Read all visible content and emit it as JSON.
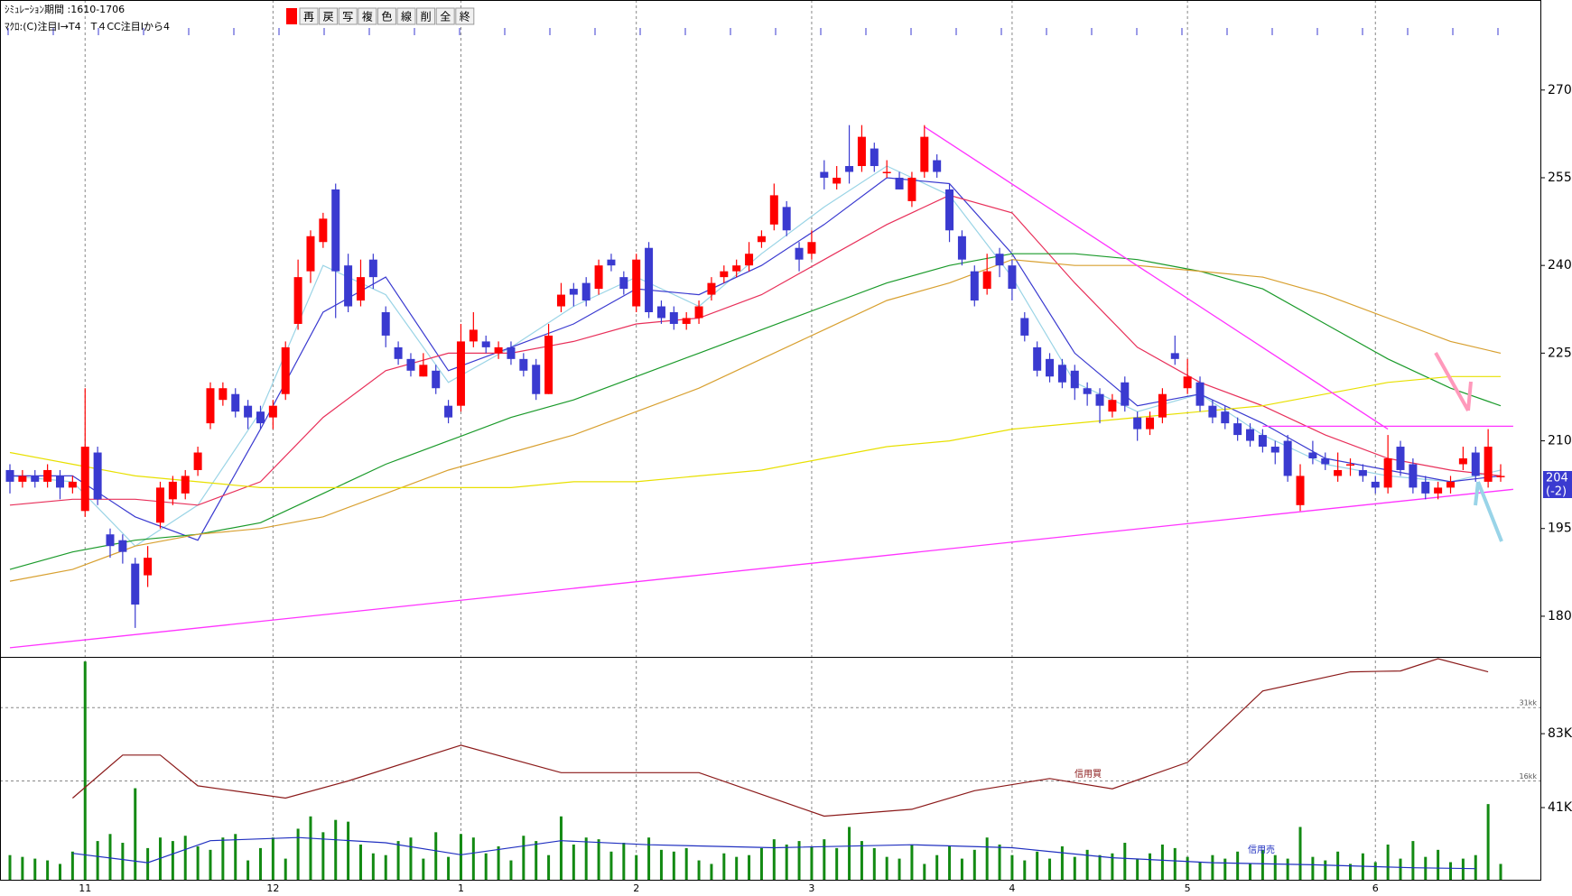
{
  "header": {
    "simulation": "ｼﾐｭﾚｰｼｮﾝ期間 :1610-1706",
    "macro": "ﾏｸﾛ:(C)注目I→T4　T４CC注目Iから4"
  },
  "toolbar": {
    "buttons": [
      "再",
      "戻",
      "写",
      "複",
      "色",
      "線",
      "削",
      "全",
      "終"
    ]
  },
  "chart_data": {
    "type": "candlestick",
    "up_color": "#ff0000",
    "down_color": "#3a3ad0",
    "ylim": [
      173.2,
      285.4
    ],
    "yticks": [
      180,
      195,
      210,
      225,
      240,
      255,
      270
    ],
    "last_price": 204,
    "change": {
      "value": -2,
      "label": "(-2)"
    },
    "xticks": [
      {
        "value": 6,
        "label": "11"
      },
      {
        "value": 21,
        "label": "12"
      },
      {
        "value": 36,
        "label": "1"
      },
      {
        "value": 50,
        "label": "2"
      },
      {
        "value": 64,
        "label": "3"
      },
      {
        "value": 80,
        "label": "4"
      },
      {
        "value": 94,
        "label": "5"
      },
      {
        "value": 109,
        "label": "6"
      }
    ],
    "candles": [
      [
        205,
        206,
        201,
        203
      ],
      [
        203,
        205,
        202,
        204
      ],
      [
        204,
        205,
        202,
        203
      ],
      [
        203,
        206,
        202,
        205
      ],
      [
        204,
        205,
        200,
        202
      ],
      [
        202,
        204,
        201,
        203
      ],
      [
        198,
        219,
        197,
        209
      ],
      [
        208,
        209,
        199,
        200
      ],
      [
        194,
        195,
        190,
        192
      ],
      [
        193,
        194,
        189,
        191
      ],
      [
        189,
        190,
        178,
        182
      ],
      [
        187,
        192,
        185,
        190
      ],
      [
        196,
        203,
        195,
        202
      ],
      [
        200,
        204,
        199,
        203
      ],
      [
        201,
        205,
        200,
        204
      ],
      [
        205,
        209,
        204,
        208
      ],
      [
        213,
        220,
        212,
        219
      ],
      [
        217,
        220,
        216,
        219
      ],
      [
        218,
        219,
        214,
        215
      ],
      [
        216,
        217,
        212,
        214
      ],
      [
        215,
        216,
        212,
        213
      ],
      [
        214,
        217,
        212,
        216
      ],
      [
        218,
        227,
        217,
        226
      ],
      [
        230,
        241,
        229,
        238
      ],
      [
        239,
        246,
        237,
        245
      ],
      [
        244,
        249,
        243,
        248
      ],
      [
        253,
        254,
        231,
        239
      ],
      [
        240,
        242,
        232,
        233
      ],
      [
        234,
        241,
        233,
        238
      ],
      [
        241,
        242,
        236,
        238
      ],
      [
        232,
        233,
        226,
        228
      ],
      [
        226,
        227,
        223,
        224
      ],
      [
        224,
        225,
        221,
        222
      ],
      [
        221,
        225,
        221,
        223
      ],
      [
        222,
        223,
        218,
        219
      ],
      [
        216,
        217,
        213,
        214
      ],
      [
        216,
        230,
        215,
        227
      ],
      [
        227,
        232,
        226,
        229
      ],
      [
        227,
        228,
        225,
        226
      ],
      [
        225,
        227,
        224,
        226
      ],
      [
        226,
        227,
        223,
        224
      ],
      [
        224,
        225,
        221,
        222
      ],
      [
        223,
        224,
        217,
        218
      ],
      [
        218,
        230,
        218,
        228
      ],
      [
        233,
        237,
        232,
        235
      ],
      [
        236,
        237,
        233,
        235
      ],
      [
        237,
        238,
        233,
        234
      ],
      [
        236,
        241,
        235,
        240
      ],
      [
        241,
        242,
        239,
        240
      ],
      [
        238,
        239,
        235,
        236
      ],
      [
        233,
        242,
        232,
        241
      ],
      [
        243,
        244,
        231,
        232
      ],
      [
        233,
        234,
        230,
        231
      ],
      [
        232,
        233,
        229,
        230
      ],
      [
        230,
        232,
        229,
        231
      ],
      [
        231,
        234,
        230,
        233
      ],
      [
        235,
        238,
        234,
        237
      ],
      [
        238,
        240,
        237,
        239
      ],
      [
        239,
        241,
        238,
        240
      ],
      [
        240,
        244,
        239,
        242
      ],
      [
        244,
        246,
        243,
        245
      ],
      [
        247,
        254,
        246,
        252
      ],
      [
        250,
        251,
        245,
        246
      ],
      [
        243,
        244,
        239,
        241
      ],
      [
        242,
        246,
        241,
        244
      ],
      [
        256,
        258,
        253,
        255
      ],
      [
        254,
        257,
        253,
        255
      ],
      [
        257,
        264,
        254,
        256
      ],
      [
        257,
        264,
        256,
        262
      ],
      [
        260,
        261,
        256,
        257
      ],
      [
        256,
        258,
        255,
        256
      ],
      [
        255,
        256,
        253,
        253
      ],
      [
        251,
        256,
        250,
        255
      ],
      [
        256,
        264,
        255,
        262
      ],
      [
        258,
        259,
        255,
        256
      ],
      [
        253,
        254,
        244,
        246
      ],
      [
        245,
        246,
        240,
        241
      ],
      [
        239,
        240,
        233,
        234
      ],
      [
        236,
        242,
        235,
        239
      ],
      [
        242,
        243,
        238,
        240
      ],
      [
        240,
        241,
        234,
        236
      ],
      [
        231,
        232,
        227,
        228
      ],
      [
        226,
        227,
        221,
        222
      ],
      [
        224,
        225,
        220,
        221
      ],
      [
        223,
        224,
        219,
        220
      ],
      [
        222,
        223,
        217,
        219
      ],
      [
        219,
        220,
        216,
        218
      ],
      [
        218,
        219,
        213,
        216
      ],
      [
        215,
        218,
        214,
        217
      ],
      [
        220,
        221,
        215,
        216
      ],
      [
        214,
        215,
        210,
        212
      ],
      [
        212,
        215,
        211,
        214
      ],
      [
        214,
        219,
        213,
        218
      ],
      [
        225,
        228,
        223,
        224
      ],
      [
        219,
        224,
        218,
        221
      ],
      [
        220,
        221,
        215,
        216
      ],
      [
        216,
        217,
        213,
        214
      ],
      [
        215,
        216,
        212,
        213
      ],
      [
        213,
        214,
        210,
        211
      ],
      [
        212,
        213,
        209,
        210
      ],
      [
        211,
        212,
        208,
        209
      ],
      [
        209,
        210,
        206,
        208
      ],
      [
        210,
        211,
        203,
        204
      ],
      [
        199,
        206,
        198,
        204
      ],
      [
        208,
        210,
        206,
        207
      ],
      [
        207,
        208,
        205,
        206
      ],
      [
        204,
        208,
        203,
        205
      ],
      [
        206,
        207,
        204,
        206
      ],
      [
        205,
        206,
        203,
        204
      ],
      [
        203,
        204,
        201,
        202
      ],
      [
        202,
        211,
        201,
        207
      ],
      [
        209,
        210,
        204,
        205
      ],
      [
        206,
        207,
        201,
        202
      ],
      [
        203,
        204,
        200,
        201
      ],
      [
        201,
        203,
        200,
        202
      ],
      [
        202,
        204,
        201,
        203
      ],
      [
        206,
        209,
        205,
        207
      ],
      [
        208,
        209,
        203,
        204
      ],
      [
        203,
        212,
        202,
        209
      ],
      [
        204,
        206,
        203,
        204
      ]
    ],
    "ma_x": [
      0,
      5,
      10,
      15,
      20,
      25,
      30,
      35,
      40,
      45,
      50,
      55,
      60,
      65,
      70,
      75,
      80,
      85,
      90,
      95,
      100,
      105,
      110,
      115,
      119
    ],
    "moving_averages": [
      {
        "color": "#9ad4e6",
        "values": [
          204,
          203,
          192,
          199,
          215,
          240,
          235,
          220,
          226,
          233,
          238,
          233,
          242,
          250,
          257,
          252,
          238,
          220,
          215,
          218,
          211,
          206,
          204,
          203,
          205
        ]
      },
      {
        "color": "#3a3ad0",
        "values": [
          204,
          204,
          197,
          193,
          212,
          232,
          238,
          222,
          226,
          230,
          236,
          235,
          240,
          247,
          255,
          254,
          242,
          225,
          216,
          218,
          213,
          207,
          205,
          203,
          204
        ]
      },
      {
        "color": "#e8305a",
        "values": [
          199,
          200,
          200,
          199,
          203,
          214,
          222,
          225,
          225,
          227,
          230,
          231,
          235,
          241,
          247,
          252,
          249,
          237,
          226,
          220,
          216,
          211,
          207,
          205,
          204
        ]
      },
      {
        "color": "#1a9a2a",
        "values": [
          188,
          191,
          193,
          194,
          196,
          201,
          206,
          210,
          214,
          217,
          221,
          225,
          229,
          233,
          237,
          240,
          242,
          242,
          241,
          239,
          236,
          230,
          224,
          219,
          216
        ]
      },
      {
        "color": "#d8a030",
        "values": [
          186,
          188,
          192,
          194,
          195,
          197,
          201,
          205,
          208,
          211,
          215,
          219,
          224,
          229,
          234,
          237,
          241,
          240,
          240,
          239,
          238,
          235,
          231,
          227,
          225
        ]
      },
      {
        "color": "#e8e000",
        "values": [
          208,
          206,
          204,
          203,
          202,
          202,
          202,
          202,
          202,
          203,
          203,
          204,
          205,
          207,
          209,
          210,
          212,
          213,
          214,
          215,
          216,
          218,
          220,
          221,
          221
        ]
      }
    ],
    "trendlines": [
      {
        "color": "#ff33ff",
        "x": [
          0,
          120
        ],
        "values": [
          174.6,
          201.7
        ]
      },
      {
        "color": "#ff33ff",
        "x": [
          73,
          110
        ],
        "values": [
          263.7,
          212
        ]
      },
      {
        "color": "#ff33ff",
        "x": [
          100,
          120
        ],
        "values": [
          212.5,
          212.5
        ]
      }
    ],
    "volume": {
      "color": "#138a13",
      "ylim": [
        0,
        125.6
      ],
      "yticks": [
        {
          "value": 41,
          "label": "41K"
        },
        {
          "value": 83,
          "label": "83K"
        }
      ],
      "values": [
        14,
        13,
        12,
        11,
        9,
        16,
        124,
        22,
        26,
        21,
        52,
        18,
        24,
        22,
        25,
        19,
        17,
        24,
        26,
        11,
        18,
        24,
        12,
        29,
        36,
        27,
        34,
        33,
        20,
        15,
        14,
        22,
        24,
        12,
        27,
        13,
        26,
        24,
        15,
        19,
        11,
        25,
        22,
        14,
        36,
        20,
        24,
        23,
        16,
        21,
        14,
        24,
        17,
        16,
        18,
        11,
        9,
        15,
        13,
        14,
        18,
        23,
        20,
        22,
        19,
        23,
        18,
        30,
        22,
        18,
        13,
        12,
        20,
        9,
        14,
        19,
        12,
        17,
        24,
        20,
        14,
        11,
        16,
        12,
        19,
        13,
        17,
        14,
        15,
        21,
        12,
        15,
        20,
        18,
        13,
        10,
        14,
        12,
        16,
        9,
        17,
        14,
        12,
        30,
        13,
        11,
        16,
        9,
        15,
        10,
        20,
        12,
        22,
        13,
        17,
        10,
        12,
        14,
        43,
        9
      ]
    },
    "credit": {
      "ylim": [
        -4.2,
        41
      ],
      "yticks": [
        {
          "value": 16,
          "label": "16kk"
        },
        {
          "value": 31,
          "label": "31kk"
        }
      ]
    },
    "credit_series": [
      {
        "name": "信用買",
        "color": "#8b1a1a",
        "axis": "credit",
        "x": [
          5,
          9,
          12,
          15,
          22,
          27,
          36,
          44,
          55,
          65,
          72,
          77,
          83,
          88,
          94,
          100,
          107,
          111,
          114,
          118
        ],
        "values": [
          12.5,
          21.3,
          21.3,
          15,
          12.5,
          16,
          23.3,
          17.7,
          17.7,
          8.8,
          10.2,
          14,
          16.5,
          14.4,
          19.8,
          34.4,
          38.3,
          38.5,
          41,
          38.3
        ]
      },
      {
        "name": "信用売",
        "color": "#2030c0",
        "axis": "volume",
        "x": [
          5,
          11,
          16,
          23,
          30,
          36,
          44,
          51,
          61,
          72,
          80,
          88,
          96,
          104,
          112,
          117
        ],
        "values": [
          15,
          9.7,
          22.2,
          24,
          21,
          14.2,
          22.2,
          19.9,
          18.2,
          19.9,
          18.2,
          12.5,
          9.7,
          8.5,
          6.8,
          6.3
        ]
      }
    ]
  }
}
